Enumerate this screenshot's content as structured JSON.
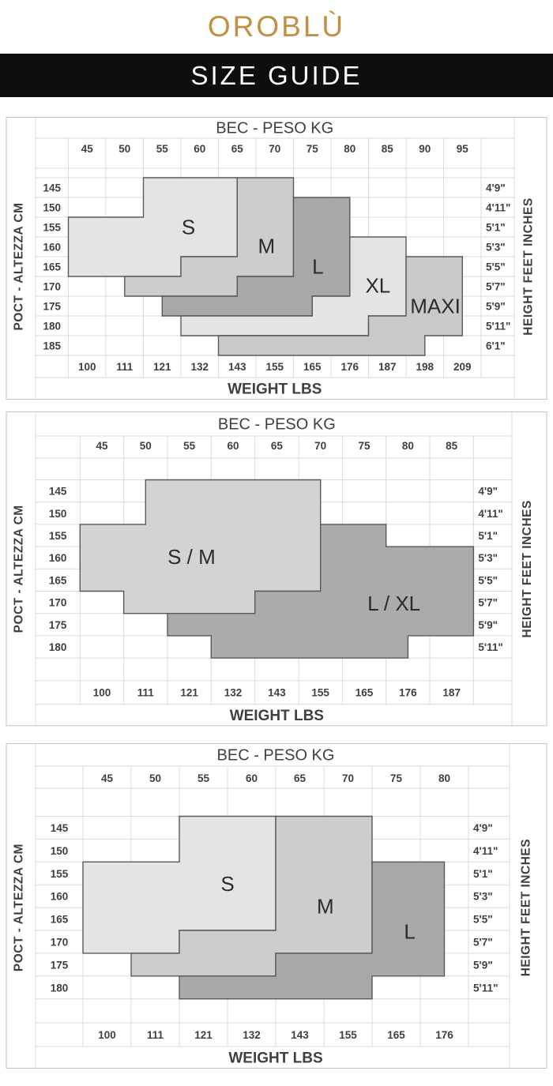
{
  "brand": {
    "logo_text": "OROBLÙ",
    "logo_color": "#c28f45"
  },
  "banner": {
    "text": "SIZE GUIDE",
    "bg_color": "#0e0e0e",
    "text_color": "#ffffff"
  },
  "chart_data": [
    {
      "type": "stepped-region-size-grid",
      "title": "BEC - PESO KG",
      "bottom_title": "WEIGHT LBS",
      "left_axis_label": "POCT - ALTEZZA CM",
      "right_axis_label": "HEIGHT FEET INCHES",
      "kg_ticks": [
        "45",
        "50",
        "55",
        "60",
        "65",
        "70",
        "75",
        "80",
        "85",
        "90",
        "95"
      ],
      "lbs_ticks": [
        "100",
        "111",
        "121",
        "132",
        "143",
        "155",
        "165",
        "176",
        "187",
        "198",
        "209"
      ],
      "cm_ticks": [
        "145",
        "150",
        "155",
        "160",
        "165",
        "170",
        "175",
        "180",
        "185"
      ],
      "feet_ticks": [
        "4'9\"",
        "4'11\"",
        "5'1\"",
        "5'3\"",
        "5'5\"",
        "5'7\"",
        "5'9\"",
        "5'11\"",
        "6'1\""
      ],
      "grid_color": "#dbdbdb",
      "border_color": "#c2c2c2",
      "region_stroke": "#595959",
      "text_color": "#3f3f3f",
      "regions": [
        {
          "label": "S",
          "fill": "#e4e4e4",
          "points": [
            [
              2,
              0
            ],
            [
              4.5,
              0
            ],
            [
              4.5,
              4
            ],
            [
              3,
              4
            ],
            [
              3,
              5
            ],
            [
              0,
              5
            ],
            [
              0,
              2
            ],
            [
              2,
              2
            ]
          ],
          "label_at": [
            3.2,
            2.5
          ]
        },
        {
          "label": "M",
          "fill": "#cdcdcd",
          "points": [
            [
              4.5,
              0
            ],
            [
              6,
              0
            ],
            [
              6,
              5
            ],
            [
              4.5,
              5
            ],
            [
              4.5,
              6
            ],
            [
              1.5,
              6
            ],
            [
              1.5,
              5
            ],
            [
              3,
              5
            ],
            [
              3,
              4
            ],
            [
              4.5,
              4
            ]
          ],
          "label_at": [
            5.28,
            3.45
          ]
        },
        {
          "label": "L",
          "fill": "#a8a8a8",
          "points": [
            [
              6,
              1
            ],
            [
              7.5,
              1
            ],
            [
              7.5,
              6
            ],
            [
              6.5,
              6
            ],
            [
              6.5,
              7
            ],
            [
              2.5,
              7
            ],
            [
              2.5,
              6
            ],
            [
              4.5,
              6
            ],
            [
              4.5,
              5
            ],
            [
              6,
              5
            ]
          ],
          "label_at": [
            6.65,
            4.5
          ]
        },
        {
          "label": "XL",
          "fill": "#e4e4e4",
          "points": [
            [
              7.5,
              3
            ],
            [
              9,
              3
            ],
            [
              9,
              7
            ],
            [
              8,
              7
            ],
            [
              8,
              8
            ],
            [
              3,
              8
            ],
            [
              3,
              7
            ],
            [
              6.5,
              7
            ],
            [
              6.5,
              6
            ],
            [
              7.5,
              6
            ]
          ],
          "label_at": [
            8.25,
            5.45
          ]
        },
        {
          "label": "MAXI",
          "fill": "#c9c9c9",
          "points": [
            [
              9,
              4
            ],
            [
              10.5,
              4
            ],
            [
              10.5,
              8
            ],
            [
              9.5,
              8
            ],
            [
              9.5,
              9
            ],
            [
              4,
              9
            ],
            [
              4,
              8
            ],
            [
              8,
              8
            ],
            [
              8,
              7
            ],
            [
              9,
              7
            ]
          ],
          "label_at": [
            9.78,
            6.5
          ]
        }
      ]
    },
    {
      "type": "stepped-region-size-grid",
      "title": "BEC - PESO KG",
      "bottom_title": "WEIGHT LBS",
      "left_axis_label": "POCT - ALTEZZA CM",
      "right_axis_label": "HEIGHT FEET INCHES",
      "kg_ticks": [
        "45",
        "50",
        "55",
        "60",
        "65",
        "70",
        "75",
        "80",
        "85"
      ],
      "lbs_ticks": [
        "100",
        "111",
        "121",
        "132",
        "143",
        "155",
        "165",
        "176",
        "187"
      ],
      "cm_ticks": [
        "145",
        "150",
        "155",
        "160",
        "165",
        "170",
        "175",
        "180"
      ],
      "feet_ticks": [
        "4'9\"",
        "4'11\"",
        "5'1\"",
        "5'3\"",
        "5'5\"",
        "5'7\"",
        "5'9\"",
        "5'11\""
      ],
      "grid_color": "#dbdbdb",
      "border_color": "#c2c2c2",
      "region_stroke": "#595959",
      "text_color": "#3f3f3f",
      "regions": [
        {
          "label": "S / M",
          "fill": "#d3d3d3",
          "points": [
            [
              1.5,
              0
            ],
            [
              5.5,
              0
            ],
            [
              5.5,
              5
            ],
            [
              4,
              5
            ],
            [
              4,
              6
            ],
            [
              1,
              6
            ],
            [
              1,
              5
            ],
            [
              0,
              5
            ],
            [
              0,
              2
            ],
            [
              1.5,
              2
            ]
          ],
          "label_at": [
            2.55,
            3.45
          ]
        },
        {
          "label": "L / XL",
          "fill": "#ababab",
          "points": [
            [
              5.5,
              2
            ],
            [
              7,
              2
            ],
            [
              7,
              3
            ],
            [
              9,
              3
            ],
            [
              9,
              7
            ],
            [
              7.5,
              7
            ],
            [
              7.5,
              8
            ],
            [
              3,
              8
            ],
            [
              3,
              7
            ],
            [
              2,
              7
            ],
            [
              2,
              6
            ],
            [
              4,
              6
            ],
            [
              4,
              5
            ],
            [
              5.5,
              5
            ]
          ],
          "label_at": [
            7.18,
            5.55
          ]
        }
      ]
    },
    {
      "type": "stepped-region-size-grid",
      "title": "BEC - PESO KG",
      "bottom_title": "WEIGHT LBS",
      "left_axis_label": "POCT - ALTEZZA CM",
      "right_axis_label": "HEIGHT FEET INCHES",
      "kg_ticks": [
        "45",
        "50",
        "55",
        "60",
        "65",
        "70",
        "75",
        "80"
      ],
      "lbs_ticks": [
        "100",
        "111",
        "121",
        "132",
        "143",
        "155",
        "165",
        "176"
      ],
      "cm_ticks": [
        "145",
        "150",
        "155",
        "160",
        "165",
        "170",
        "175",
        "180"
      ],
      "feet_ticks": [
        "4'9\"",
        "4'11\"",
        "5'1\"",
        "5'3\"",
        "5'5\"",
        "5'7\"",
        "5'9\"",
        "5'11\""
      ],
      "grid_color": "#dbdbdb",
      "border_color": "#c2c2c2",
      "region_stroke": "#595959",
      "text_color": "#3f3f3f",
      "regions": [
        {
          "label": "S",
          "fill": "#e4e4e4",
          "points": [
            [
              2,
              0
            ],
            [
              4,
              0
            ],
            [
              4,
              5
            ],
            [
              2,
              5
            ],
            [
              2,
              6
            ],
            [
              0,
              6
            ],
            [
              0,
              2
            ],
            [
              2,
              2
            ]
          ],
          "label_at": [
            3.0,
            2.95
          ]
        },
        {
          "label": "M",
          "fill": "#cdcdcd",
          "points": [
            [
              4,
              0
            ],
            [
              6,
              0
            ],
            [
              6,
              6
            ],
            [
              4,
              6
            ],
            [
              4,
              7
            ],
            [
              1,
              7
            ],
            [
              1,
              6
            ],
            [
              2,
              6
            ],
            [
              2,
              5
            ],
            [
              4,
              5
            ]
          ],
          "label_at": [
            5.03,
            3.95
          ]
        },
        {
          "label": "L",
          "fill": "#a8a8a8",
          "points": [
            [
              6,
              2
            ],
            [
              7.5,
              2
            ],
            [
              7.5,
              7
            ],
            [
              6,
              7
            ],
            [
              6,
              8
            ],
            [
              2,
              8
            ],
            [
              2,
              7
            ],
            [
              4,
              7
            ],
            [
              4,
              6
            ],
            [
              6,
              6
            ]
          ],
          "label_at": [
            6.78,
            5.05
          ]
        }
      ]
    }
  ]
}
